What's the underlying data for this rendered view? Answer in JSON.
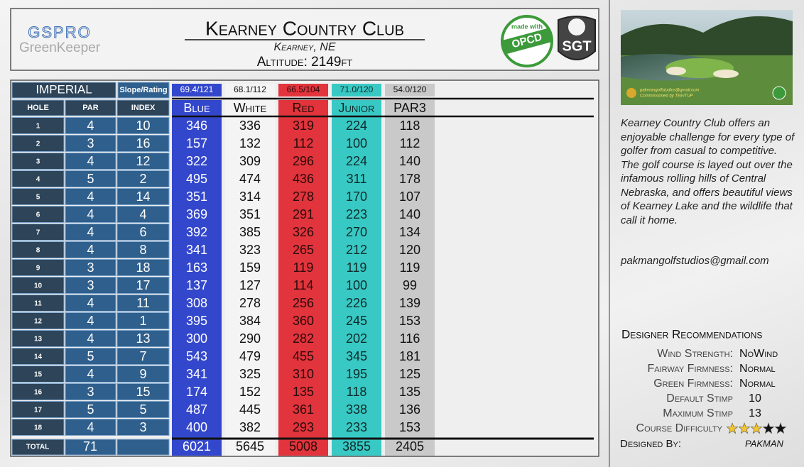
{
  "header": {
    "logo_top": "GSPRO",
    "logo_bottom": "GreenKeeper",
    "title": "Kearney Country Club",
    "location": "Kearney, NE",
    "altitude": "Altitude: 2149ft",
    "badge_opcd_top": "made with",
    "badge_opcd": "OPCD",
    "badge_sgt": "SGT"
  },
  "scorecard": {
    "unit": "IMPERIAL",
    "slope_label": "Slope/Rating",
    "columns": [
      "HOLE",
      "PAR",
      "INDEX"
    ],
    "holes": [
      1,
      2,
      3,
      4,
      5,
      6,
      7,
      8,
      9,
      10,
      11,
      12,
      13,
      14,
      15,
      16,
      17,
      18
    ],
    "par": [
      4,
      3,
      4,
      5,
      4,
      4,
      4,
      4,
      3,
      3,
      4,
      4,
      4,
      5,
      4,
      3,
      5,
      4
    ],
    "index": [
      10,
      16,
      12,
      2,
      14,
      4,
      6,
      8,
      18,
      17,
      11,
      1,
      13,
      7,
      9,
      15,
      5,
      3
    ],
    "total_label": "TOTAL",
    "par_total": 71,
    "tees": [
      {
        "name": "Blue",
        "rating": "69.4/121",
        "color": "#3347cc",
        "text_color": "#ffffff",
        "yards": [
          346,
          157,
          322,
          495,
          351,
          369,
          392,
          341,
          163,
          137,
          308,
          395,
          300,
          543,
          341,
          174,
          487,
          400
        ],
        "total": 6021
      },
      {
        "name": "White",
        "rating": "68.1/112",
        "color": "#f4f4f4",
        "text_color": "#111111",
        "yards": [
          336,
          132,
          309,
          474,
          314,
          351,
          385,
          323,
          159,
          127,
          278,
          384,
          290,
          479,
          325,
          152,
          445,
          382
        ],
        "total": 5645
      },
      {
        "name": "Red",
        "rating": "66.5/104",
        "color": "#e1343c",
        "text_color": "#2a0a0a",
        "yards": [
          319,
          112,
          296,
          436,
          278,
          291,
          326,
          265,
          119,
          114,
          256,
          360,
          282,
          455,
          310,
          135,
          361,
          293
        ],
        "total": 5008
      },
      {
        "name": "Junior",
        "rating": "71.0/120",
        "color": "#38c9c4",
        "text_color": "#102a2a",
        "yards": [
          224,
          100,
          224,
          311,
          170,
          223,
          270,
          212,
          119,
          100,
          226,
          245,
          202,
          345,
          195,
          118,
          338,
          233
        ],
        "total": 3855
      },
      {
        "name": "PAR3",
        "rating": "54.0/120",
        "color": "#c9c9c9",
        "text_color": "#111111",
        "yards": [
          118,
          112,
          140,
          178,
          107,
          140,
          134,
          120,
          119,
          99,
          139,
          153,
          116,
          181,
          125,
          135,
          136,
          153
        ],
        "total": 2405
      }
    ]
  },
  "sidebar": {
    "photo_caption_1": "pakmangolfstudios@gmail.com",
    "photo_caption_2": "Commissioned by TEEITUP",
    "description": "Kearney Country Club offers an enjoyable challenge for every type of golfer from casual to competitive. The golf course is layed out over the infamous rolling hills of Central Nebraska, and offers beautiful views of Kearney Lake and the wildlife that call it home.",
    "email": "pakmangolfstudios@gmail.com",
    "recommendations_title": "Designer Recommendations",
    "recommendations": [
      {
        "label": "Wind Strength:",
        "value": "NoWind"
      },
      {
        "label": "Fairway Firmness:",
        "value": "Normal"
      },
      {
        "label": "Green Firmness:",
        "value": "Normal"
      },
      {
        "label": "Default Stimp",
        "value": 10
      },
      {
        "label": "Maximum Stimp",
        "value": 13
      }
    ],
    "difficulty": {
      "label": "Course Difficulty",
      "rating": 3,
      "max": 5
    },
    "designer": {
      "label": "Designed By:",
      "value": "PAKMAN"
    }
  }
}
